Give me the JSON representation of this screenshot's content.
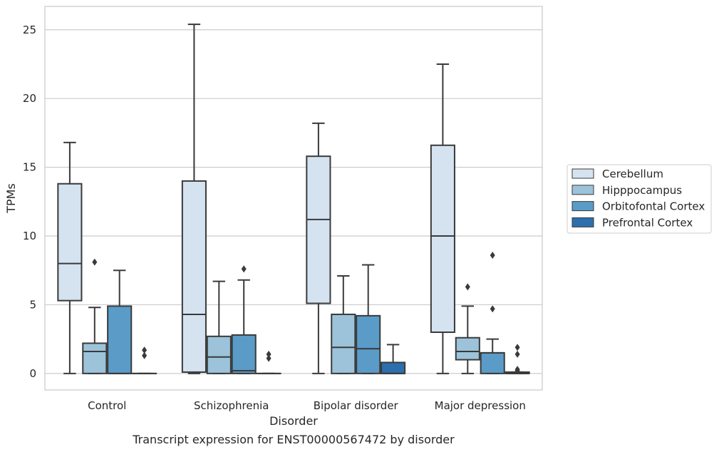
{
  "chart_data": {
    "type": "box",
    "caption": "Transcript expression for ENST00000567472 by disorder",
    "xlabel": "Disorder",
    "ylabel": "TPMs",
    "ylim": [
      -1.2,
      26.7
    ],
    "yticks": [
      0,
      5,
      10,
      15,
      20,
      25
    ],
    "grid": true,
    "legend_position": "right",
    "categories": [
      "Control",
      "Schizophrenia",
      "Bipolar disorder",
      "Major depression"
    ],
    "series": [
      {
        "name": "Cerebellum",
        "color": "#d5e3f1",
        "boxes": [
          {
            "whisker_low": 0,
            "q1": 5.3,
            "median": 8.0,
            "q3": 13.8,
            "whisker_high": 16.8,
            "outliers": []
          },
          {
            "whisker_low": 0,
            "q1": 0.1,
            "median": 4.3,
            "q3": 14.0,
            "whisker_high": 25.4,
            "outliers": []
          },
          {
            "whisker_low": 0,
            "q1": 5.1,
            "median": 11.2,
            "q3": 15.8,
            "whisker_high": 18.2,
            "outliers": []
          },
          {
            "whisker_low": 0,
            "q1": 3.0,
            "median": 10.0,
            "q3": 16.6,
            "whisker_high": 22.5,
            "outliers": []
          }
        ]
      },
      {
        "name": "Hipppocampus",
        "color": "#9cc3da",
        "boxes": [
          {
            "whisker_low": 0,
            "q1": 0,
            "median": 1.6,
            "q3": 2.2,
            "whisker_high": 4.8,
            "outliers": [
              8.1
            ]
          },
          {
            "whisker_low": 0,
            "q1": 0,
            "median": 1.2,
            "q3": 2.7,
            "whisker_high": 6.7,
            "outliers": []
          },
          {
            "whisker_low": 0,
            "q1": 0,
            "median": 1.9,
            "q3": 4.3,
            "whisker_high": 7.1,
            "outliers": []
          },
          {
            "whisker_low": 0,
            "q1": 1.0,
            "median": 1.6,
            "q3": 2.6,
            "whisker_high": 4.9,
            "outliers": [
              6.3
            ]
          }
        ]
      },
      {
        "name": "Orbitofontal Cortex",
        "color": "#5a9bc8",
        "boxes": [
          {
            "whisker_low": 0,
            "q1": 0,
            "median": 0,
            "q3": 4.9,
            "whisker_high": 7.5,
            "outliers": []
          },
          {
            "whisker_low": 0,
            "q1": 0,
            "median": 0.2,
            "q3": 2.8,
            "whisker_high": 6.8,
            "outliers": [
              7.6
            ]
          },
          {
            "whisker_low": 0,
            "q1": 0,
            "median": 1.8,
            "q3": 4.2,
            "whisker_high": 7.9,
            "outliers": []
          },
          {
            "whisker_low": 0,
            "q1": 0,
            "median": 1.5,
            "q3": 1.5,
            "whisker_high": 2.5,
            "outliers": [
              4.7,
              8.6
            ]
          }
        ]
      },
      {
        "name": "Prefrontal Cortex",
        "color": "#2d6fad",
        "boxes": [
          {
            "whisker_low": 0,
            "q1": 0,
            "median": 0,
            "q3": 0,
            "whisker_high": 0,
            "outliers": [
              1.3,
              1.7
            ]
          },
          {
            "whisker_low": 0,
            "q1": 0,
            "median": 0,
            "q3": 0,
            "whisker_high": 0,
            "outliers": [
              1.1,
              1.4
            ]
          },
          {
            "whisker_low": 0,
            "q1": 0,
            "median": 0,
            "q3": 0.8,
            "whisker_high": 2.1,
            "outliers": []
          },
          {
            "whisker_low": 0,
            "q1": 0,
            "median": 0,
            "q3": 0.1,
            "whisker_high": 0.1,
            "outliers": [
              0.2,
              0.3,
              1.4,
              1.9
            ]
          }
        ]
      }
    ]
  }
}
